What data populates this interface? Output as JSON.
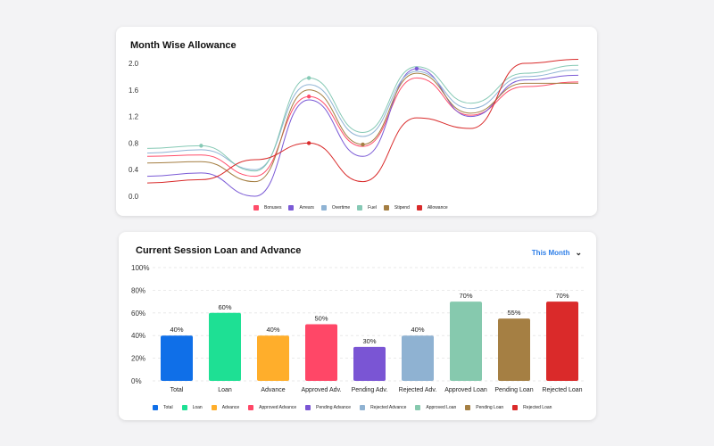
{
  "chart_data": [
    {
      "type": "line",
      "title": "Month Wise Allowance",
      "ylim": [
        0,
        2.0
      ],
      "yticks": [
        "0.0",
        "0.4",
        "0.8",
        "1.2",
        "1.6",
        "2.0"
      ],
      "grid": false,
      "legend_position": "bottom-center",
      "x": [
        1,
        2,
        3,
        4,
        5,
        6,
        7,
        8,
        9
      ],
      "series": [
        {
          "name": "Bonuses",
          "color": "#ff4d6a",
          "values": [
            0.6,
            0.62,
            0.3,
            1.5,
            0.75,
            1.78,
            1.22,
            1.65,
            1.72
          ]
        },
        {
          "name": "Arrears",
          "color": "#7b5bd6",
          "values": [
            0.3,
            0.35,
            0.0,
            1.45,
            0.6,
            1.92,
            1.2,
            1.75,
            1.82
          ]
        },
        {
          "name": "Overtime",
          "color": "#8fb3d4",
          "values": [
            0.65,
            0.7,
            0.4,
            1.68,
            0.9,
            1.88,
            1.32,
            1.8,
            1.9
          ]
        },
        {
          "name": "Fuel",
          "color": "#86c9b5",
          "values": [
            0.72,
            0.76,
            0.38,
            1.78,
            0.96,
            1.95,
            1.4,
            1.85,
            1.97
          ]
        },
        {
          "name": "Stipend",
          "color": "#a47e42",
          "values": [
            0.5,
            0.52,
            0.22,
            1.6,
            0.78,
            1.85,
            1.25,
            1.7,
            1.7
          ]
        },
        {
          "name": "Allowance",
          "color": "#d92b2b",
          "values": [
            0.2,
            0.25,
            0.55,
            0.8,
            0.22,
            1.18,
            1.02,
            2.0,
            2.06
          ]
        }
      ],
      "markers": [
        {
          "series": "Fuel",
          "index": 1
        },
        {
          "series": "Fuel",
          "index": 3
        },
        {
          "series": "Bonuses",
          "index": 3
        },
        {
          "series": "Allowance",
          "index": 3
        },
        {
          "series": "Stipend",
          "index": 4
        },
        {
          "series": "Arrears",
          "index": 5
        }
      ]
    },
    {
      "type": "bar",
      "title": "Current Session Loan and Advance",
      "ylim": [
        0,
        100
      ],
      "yticks": [
        "0%",
        "20%",
        "40%",
        "60%",
        "80%",
        "100%"
      ],
      "grid": true,
      "legend_position": "bottom-center",
      "categories": [
        "Total",
        "Loan",
        "Advance",
        "Approved Adv.",
        "Pending Adv.",
        "Rejected Adv.",
        "Approved Loan",
        "Pending Loan",
        "Rejected Loan"
      ],
      "values": [
        40,
        60,
        40,
        50,
        30,
        40,
        70,
        55,
        70
      ],
      "value_labels": [
        "40%",
        "60%",
        "40%",
        "50%",
        "30%",
        "40%",
        "70%",
        "55%",
        "70%"
      ],
      "colors": [
        "#0f6fe8",
        "#1ee094",
        "#ffae2b",
        "#ff4767",
        "#7a55d4",
        "#8fb2d2",
        "#86c9ae",
        "#a57f43",
        "#da2a2a"
      ],
      "legend": [
        "Total",
        "Loan",
        "Advance",
        "Approved Advance",
        "Pending Advance",
        "Rejected Advance",
        "Approved Loan",
        "Pending Loan",
        "Rejected Loan"
      ]
    }
  ],
  "period_selector": {
    "label": "This Month"
  }
}
